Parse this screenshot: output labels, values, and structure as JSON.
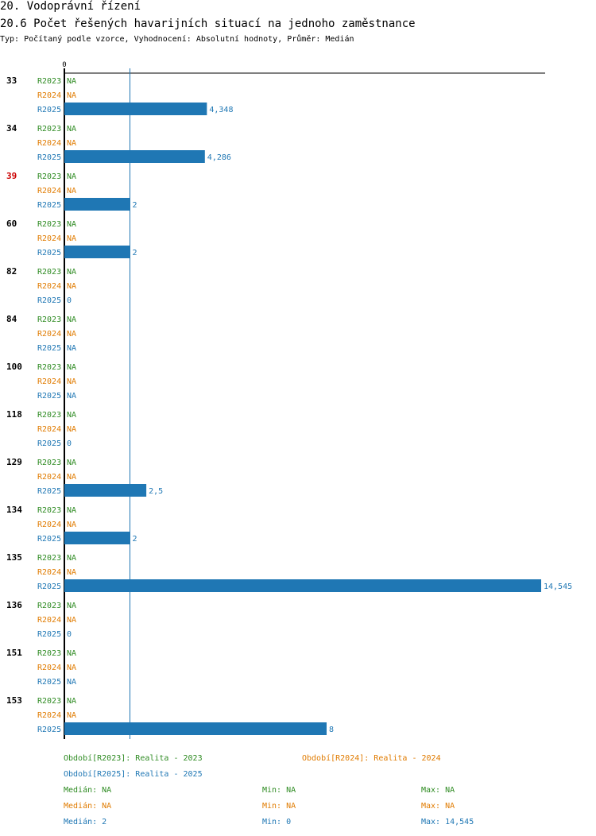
{
  "header": {
    "section": "20. Vodoprávní řízení",
    "title": "20.6 Počet řešených havarijních situací na jednoho zaměstnance",
    "subtitle": "Typ: Počítaný podle vzorce, Vyhodnocení: Absolutní hodnoty, Průměr: Medián"
  },
  "colors": {
    "r2023": "#2e8b22",
    "r2024": "#e07b00",
    "r2025": "#1f77b4",
    "highlight": "#cc0000",
    "axis": "#000000"
  },
  "chart_data": {
    "type": "bar",
    "orientation": "horizontal",
    "title": "20.6 Počet řešených havarijních situací na jednoho zaměstnance",
    "axis_zero_label": "0",
    "xlim": [
      0,
      14.545
    ],
    "median_line": 2,
    "series_names": [
      "R2023",
      "R2024",
      "R2025"
    ],
    "groups": [
      {
        "id": "33",
        "highlight": false,
        "values": [
          null,
          null,
          4.348
        ],
        "labels": [
          "NA",
          "NA",
          "4,348"
        ]
      },
      {
        "id": "34",
        "highlight": false,
        "values": [
          null,
          null,
          4.286
        ],
        "labels": [
          "NA",
          "NA",
          "4,286"
        ]
      },
      {
        "id": "39",
        "highlight": true,
        "values": [
          null,
          null,
          2
        ],
        "labels": [
          "NA",
          "NA",
          "2"
        ]
      },
      {
        "id": "60",
        "highlight": false,
        "values": [
          null,
          null,
          2
        ],
        "labels": [
          "NA",
          "NA",
          "2"
        ]
      },
      {
        "id": "82",
        "highlight": false,
        "values": [
          null,
          null,
          0
        ],
        "labels": [
          "NA",
          "NA",
          "0"
        ]
      },
      {
        "id": "84",
        "highlight": false,
        "values": [
          null,
          null,
          null
        ],
        "labels": [
          "NA",
          "NA",
          "NA"
        ]
      },
      {
        "id": "100",
        "highlight": false,
        "values": [
          null,
          null,
          null
        ],
        "labels": [
          "NA",
          "NA",
          "NA"
        ]
      },
      {
        "id": "118",
        "highlight": false,
        "values": [
          null,
          null,
          0
        ],
        "labels": [
          "NA",
          "NA",
          "0"
        ]
      },
      {
        "id": "129",
        "highlight": false,
        "values": [
          null,
          null,
          2.5
        ],
        "labels": [
          "NA",
          "NA",
          "2,5"
        ]
      },
      {
        "id": "134",
        "highlight": false,
        "values": [
          null,
          null,
          2
        ],
        "labels": [
          "NA",
          "NA",
          "2"
        ]
      },
      {
        "id": "135",
        "highlight": false,
        "values": [
          null,
          null,
          14.545
        ],
        "labels": [
          "NA",
          "NA",
          "14,545"
        ]
      },
      {
        "id": "136",
        "highlight": false,
        "values": [
          null,
          null,
          0
        ],
        "labels": [
          "NA",
          "NA",
          "0"
        ]
      },
      {
        "id": "151",
        "highlight": false,
        "values": [
          null,
          null,
          null
        ],
        "labels": [
          "NA",
          "NA",
          "NA"
        ]
      },
      {
        "id": "153",
        "highlight": false,
        "values": [
          null,
          null,
          8
        ],
        "labels": [
          "NA",
          "NA",
          "8"
        ]
      }
    ]
  },
  "legend": {
    "r2023_period": "Období[R2023]: Realita - 2023",
    "r2024_period": "Období[R2024]: Realita - 2024",
    "r2025_period": "Období[R2025]: Realita - 2025",
    "stats": [
      {
        "median": "Medián: NA",
        "min": "Min: NA",
        "max": "Max: NA"
      },
      {
        "median": "Medián: NA",
        "min": "Min: NA",
        "max": "Max: NA"
      },
      {
        "median": "Medián: 2",
        "min": "Min: 0",
        "max": "Max: 14,545"
      }
    ]
  }
}
